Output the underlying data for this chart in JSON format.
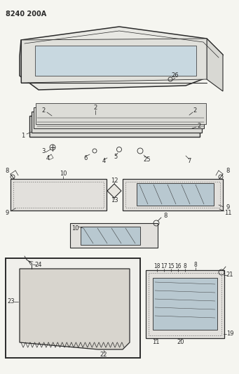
{
  "title": "8240 200A",
  "bg_color": "#f5f5f0",
  "line_color": "#2a2a2a",
  "fig_width": 3.41,
  "fig_height": 5.33,
  "dpi": 100
}
